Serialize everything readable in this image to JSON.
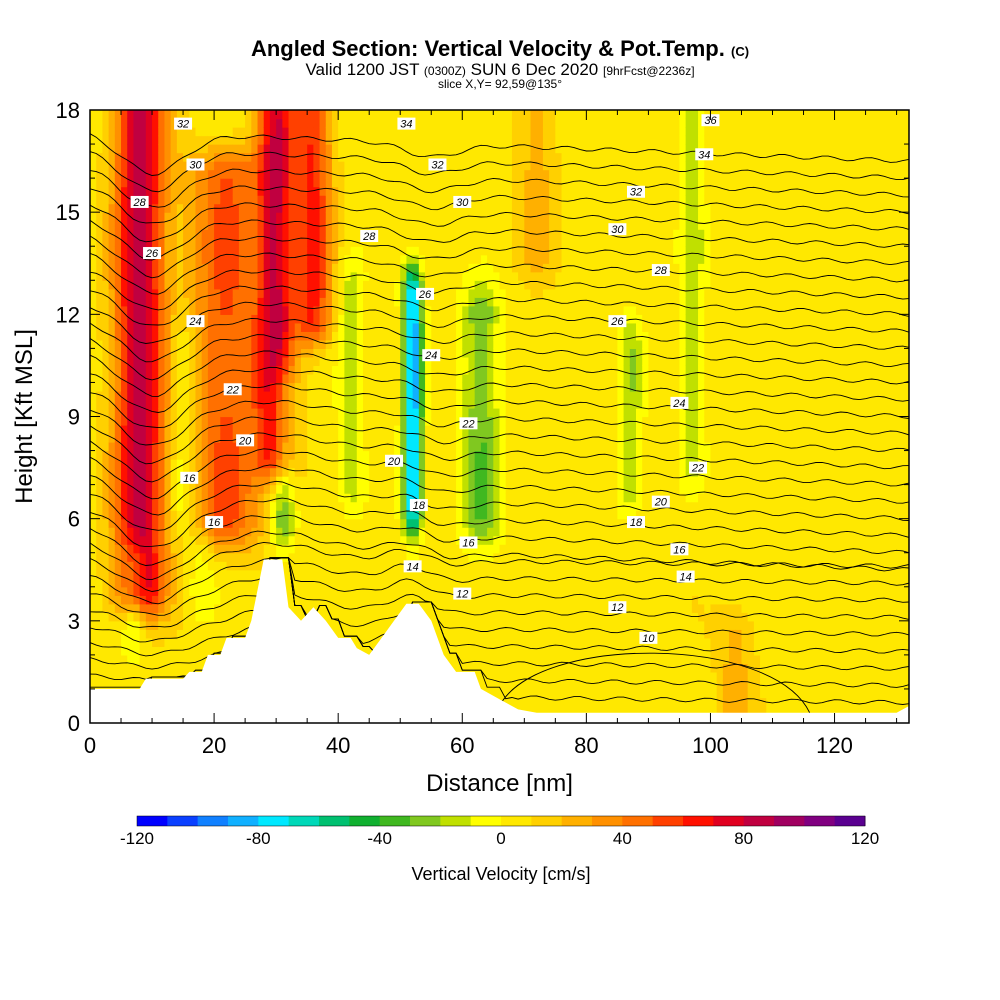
{
  "header": {
    "title_main": "Angled Section: Vertical Velocity & Pot.Temp.",
    "title_tag": "(C)",
    "valid_a": "Valid 1200 JST",
    "valid_b": "(0300Z)",
    "valid_c": "SUN 6 Dec 2020",
    "valid_d": "[9hrFcst@2236z]",
    "slice": "slice X,Y= 92,59@135°"
  },
  "chart_data": {
    "type": "heatmap",
    "xlabel": "Distance [nm]",
    "ylabel": "Height [Kft MSL]",
    "xlim": [
      0,
      132
    ],
    "ylim": [
      0,
      18
    ],
    "xticks": [
      0,
      20,
      40,
      60,
      80,
      100,
      120
    ],
    "yticks": [
      0,
      3,
      6,
      9,
      12,
      15,
      18
    ],
    "colorbar": {
      "title": "Vertical Velocity [cm/s]",
      "range": [
        -120,
        120
      ],
      "ticks": [
        -120,
        -80,
        -40,
        0,
        40,
        80,
        120
      ],
      "colors": [
        "#0000ff",
        "#0a40ff",
        "#1080ff",
        "#10b0ff",
        "#00e8ff",
        "#00d8b8",
        "#00c070",
        "#10b030",
        "#40b820",
        "#80c820",
        "#c0e000",
        "#ffff00",
        "#ffe800",
        "#ffd000",
        "#ffb000",
        "#ff9000",
        "#ff7000",
        "#ff4000",
        "#ff1000",
        "#e00020",
        "#c00040",
        "#a00060",
        "#800080",
        "#5a0090"
      ]
    },
    "cells_nm": {
      "x_step": 4,
      "y_step_kft": 0.75
    },
    "terrain": [
      [
        0,
        1.0
      ],
      [
        8,
        1.0
      ],
      [
        9,
        1.3
      ],
      [
        15,
        1.3
      ],
      [
        16,
        1.5
      ],
      [
        18,
        1.5
      ],
      [
        19,
        2.0
      ],
      [
        21,
        2.0
      ],
      [
        22,
        2.5
      ],
      [
        25,
        2.5
      ],
      [
        26,
        3.0
      ],
      [
        28,
        4.8
      ],
      [
        31,
        4.8
      ],
      [
        32,
        3.4
      ],
      [
        34,
        3.0
      ],
      [
        36,
        3.4
      ],
      [
        38,
        3.0
      ],
      [
        40,
        2.5
      ],
      [
        42,
        2.5
      ],
      [
        43,
        2.2
      ],
      [
        45,
        2.0
      ],
      [
        47,
        2.5
      ],
      [
        49,
        3.0
      ],
      [
        51,
        3.5
      ],
      [
        53,
        3.5
      ],
      [
        55,
        3.0
      ],
      [
        56,
        2.5
      ],
      [
        57,
        2.0
      ],
      [
        59,
        1.5
      ],
      [
        62,
        1.5
      ],
      [
        63,
        1.0
      ],
      [
        66,
        0.7
      ],
      [
        69,
        0.4
      ],
      [
        72,
        0.3
      ],
      [
        80,
        0.3
      ],
      [
        100,
        0.3
      ],
      [
        115,
        0.3
      ],
      [
        120,
        0.3
      ],
      [
        130,
        0.3
      ],
      [
        132,
        0.5
      ]
    ],
    "features": [
      {
        "x": 8,
        "y0": 4.0,
        "y1": 18,
        "w": 80,
        "width": 4,
        "kind": "up"
      },
      {
        "x": 22,
        "y0": 6.0,
        "y1": 16,
        "w": 45,
        "width": 6,
        "kind": "up"
      },
      {
        "x": 30,
        "y0": 8.0,
        "y1": 18,
        "w": 70,
        "width": 3,
        "kind": "up"
      },
      {
        "x": 36,
        "y0": 12,
        "y1": 18,
        "w": 55,
        "width": 3,
        "kind": "up"
      },
      {
        "x": 31,
        "y0": 6.0,
        "y1": 9.5,
        "w": -35,
        "width": 2,
        "kind": "down"
      },
      {
        "x": 15,
        "y0": 6.5,
        "y1": 11,
        "w": -20,
        "width": 2,
        "kind": "down"
      },
      {
        "x": 42,
        "y0": 7.0,
        "y1": 13,
        "w": -20,
        "width": 2,
        "kind": "down"
      },
      {
        "x": 52,
        "y0": 6.5,
        "y1": 12.5,
        "w": -95,
        "width": 1.5,
        "kind": "down"
      },
      {
        "x": 63,
        "y0": 6.0,
        "y1": 12,
        "w": -35,
        "width": 3,
        "kind": "down"
      },
      {
        "x": 87,
        "y0": 7.0,
        "y1": 11,
        "w": -25,
        "width": 2,
        "kind": "down"
      },
      {
        "x": 97,
        "y0": 8.0,
        "y1": 18,
        "w": -22,
        "width": 2,
        "kind": "down"
      },
      {
        "x": 7,
        "y0": 3.0,
        "y1": 4.5,
        "w": -30,
        "width": 2,
        "kind": "down"
      },
      {
        "x": 18,
        "y0": 4.0,
        "y1": 5.0,
        "w": -15,
        "width": 2,
        "kind": "down"
      },
      {
        "x": 72,
        "y0": 14,
        "y1": 18,
        "w": 20,
        "width": 3,
        "kind": "up"
      },
      {
        "x": 104,
        "y0": 0.5,
        "y1": 2.5,
        "w": 18,
        "width": 3,
        "kind": "up"
      }
    ],
    "theta_contours": [
      {
        "label": "10",
        "lx": 90,
        "ly": 2.5
      },
      {
        "label": "12",
        "lx": 60,
        "ly": 3.8
      },
      {
        "label": "12",
        "lx": 85,
        "ly": 3.4
      },
      {
        "label": "14",
        "lx": 52,
        "ly": 4.6
      },
      {
        "label": "14",
        "lx": 96,
        "ly": 4.3
      },
      {
        "label": "16",
        "lx": 20,
        "ly": 5.9
      },
      {
        "label": "16",
        "lx": 61,
        "ly": 5.3
      },
      {
        "label": "16",
        "lx": 95,
        "ly": 5.1
      },
      {
        "label": "18",
        "lx": 53,
        "ly": 6.4
      },
      {
        "label": "18",
        "lx": 88,
        "ly": 5.9
      },
      {
        "label": "16",
        "lx": 16,
        "ly": 7.2
      },
      {
        "label": "20",
        "lx": 25,
        "ly": 8.3
      },
      {
        "label": "20",
        "lx": 49,
        "ly": 7.7
      },
      {
        "label": "20",
        "lx": 92,
        "ly": 6.5
      },
      {
        "label": "22",
        "lx": 23,
        "ly": 9.8
      },
      {
        "label": "22",
        "lx": 61,
        "ly": 8.8
      },
      {
        "label": "22",
        "lx": 98,
        "ly": 7.5
      },
      {
        "label": "24",
        "lx": 17,
        "ly": 11.8
      },
      {
        "label": "24",
        "lx": 55,
        "ly": 10.8
      },
      {
        "label": "24",
        "lx": 95,
        "ly": 9.4
      },
      {
        "label": "26",
        "lx": 10,
        "ly": 13.8
      },
      {
        "label": "26",
        "lx": 54,
        "ly": 12.6
      },
      {
        "label": "26",
        "lx": 85,
        "ly": 11.8
      },
      {
        "label": "28",
        "lx": 8,
        "ly": 15.3
      },
      {
        "label": "28",
        "lx": 45,
        "ly": 14.3
      },
      {
        "label": "28",
        "lx": 92,
        "ly": 13.3
      },
      {
        "label": "30",
        "lx": 17,
        "ly": 16.4
      },
      {
        "label": "30",
        "lx": 60,
        "ly": 15.3
      },
      {
        "label": "30",
        "lx": 85,
        "ly": 14.5
      },
      {
        "label": "32",
        "lx": 15,
        "ly": 17.6
      },
      {
        "label": "32",
        "lx": 56,
        "ly": 16.4
      },
      {
        "label": "32",
        "lx": 88,
        "ly": 15.6
      },
      {
        "label": "34",
        "lx": 51,
        "ly": 17.6
      },
      {
        "label": "34",
        "lx": 99,
        "ly": 16.7
      },
      {
        "label": "36",
        "lx": 100,
        "ly": 17.7
      }
    ]
  }
}
